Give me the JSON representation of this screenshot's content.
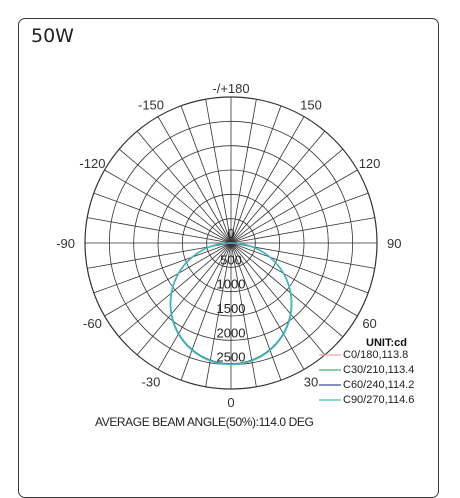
{
  "card": {
    "title": "50W"
  },
  "chart_data": {
    "type": "polar",
    "angle_labels": [
      {
        "text": "-/+180",
        "angle": 180
      },
      {
        "text": "150",
        "angle": 150
      },
      {
        "text": "-150",
        "angle": -150
      },
      {
        "text": "120",
        "angle": 120
      },
      {
        "text": "-120",
        "angle": -120
      },
      {
        "text": "90",
        "angle": 90
      },
      {
        "text": "-90",
        "angle": -90
      },
      {
        "text": "60",
        "angle": 60
      },
      {
        "text": "-60",
        "angle": -60
      },
      {
        "text": "30",
        "angle": 30
      },
      {
        "text": "-30",
        "angle": -30
      },
      {
        "text": "0",
        "angle": 0
      }
    ],
    "radial_labels": [
      "0",
      "500",
      "1000",
      "1500",
      "2000",
      "2500"
    ],
    "radial_max": 3000,
    "unit": "UNIT:cd",
    "series": [
      {
        "name": "C0/180,113.8",
        "color": "#f2a0a8",
        "peak": 2500
      },
      {
        "name": "C30/210,113.4",
        "color": "#45b07a",
        "peak": 2480
      },
      {
        "name": "C60/240,114.2",
        "color": "#3a4a9a",
        "peak": 2490
      },
      {
        "name": "C90/270,114.6",
        "color": "#34c4c4",
        "peak": 2495
      }
    ],
    "footer": "AVERAGE BEAM ANGLE(50%):114.0 DEG"
  }
}
